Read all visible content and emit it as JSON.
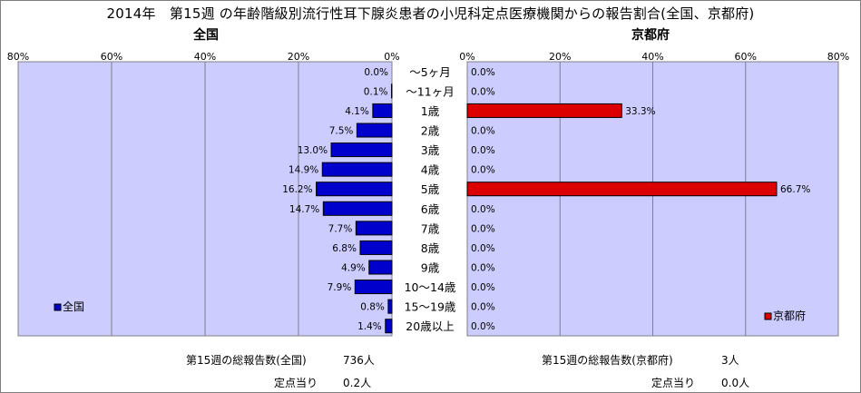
{
  "title": "2014年　第15週 の年齢階級別流行性耳下腺炎患者の小児科定点医療機関からの報告割合(全国、京都府)",
  "categories": [
    "～5ヶ月",
    "～11ヶ月",
    "1歳",
    "2歳",
    "3歳",
    "4歳",
    "5歳",
    "6歳",
    "7歳",
    "8歳",
    "9歳",
    "10～14歳",
    "15～19歳",
    "20歳以上"
  ],
  "colors": {
    "national": "#0000cc",
    "kyoto": "#dd0000",
    "plot_bg": "#ccccff"
  },
  "chart_data": [
    {
      "type": "bar",
      "orientation": "horizontal",
      "direction": "right-to-left",
      "title": "全国",
      "categories": [
        "～5ヶ月",
        "～11ヶ月",
        "1歳",
        "2歳",
        "3歳",
        "4歳",
        "5歳",
        "6歳",
        "7歳",
        "8歳",
        "9歳",
        "10～14歳",
        "15～19歳",
        "20歳以上"
      ],
      "series": [
        {
          "name": "全国",
          "values": [
            0.0,
            0.1,
            4.1,
            7.5,
            13.0,
            14.9,
            16.2,
            14.7,
            7.7,
            6.8,
            4.9,
            7.9,
            0.8,
            1.4
          ]
        }
      ],
      "labels": [
        "0.0%",
        "0.1%",
        "4.1%",
        "7.5%",
        "13.0%",
        "14.9%",
        "16.2%",
        "14.7%",
        "7.7%",
        "6.8%",
        "4.9%",
        "7.9%",
        "0.8%",
        "1.4%"
      ],
      "xlim": [
        0,
        80
      ],
      "ticks": [
        "80%",
        "60%",
        "40%",
        "20%",
        "0%"
      ],
      "tick_values": [
        80,
        60,
        40,
        20,
        0
      ],
      "legend": "bottom-left",
      "grid": true
    },
    {
      "type": "bar",
      "orientation": "horizontal",
      "direction": "left-to-right",
      "title": "京都府",
      "categories": [
        "～5ヶ月",
        "～11ヶ月",
        "1歳",
        "2歳",
        "3歳",
        "4歳",
        "5歳",
        "6歳",
        "7歳",
        "8歳",
        "9歳",
        "10～14歳",
        "15～19歳",
        "20歳以上"
      ],
      "series": [
        {
          "name": "京都府",
          "values": [
            0.0,
            0.0,
            33.3,
            0.0,
            0.0,
            0.0,
            66.7,
            0.0,
            0.0,
            0.0,
            0.0,
            0.0,
            0.0,
            0.0
          ]
        }
      ],
      "labels": [
        "0.0%",
        "0.0%",
        "33.3%",
        "0.0%",
        "0.0%",
        "0.0%",
        "66.7%",
        "0.0%",
        "0.0%",
        "0.0%",
        "0.0%",
        "0.0%",
        "0.0%",
        "0.0%"
      ],
      "xlim": [
        0,
        80
      ],
      "ticks": [
        "0%",
        "20%",
        "40%",
        "60%",
        "80%"
      ],
      "tick_values": [
        0,
        20,
        40,
        60,
        80
      ],
      "legend": "bottom-right",
      "grid": true
    }
  ],
  "footer": {
    "national_total_label": "第15週の総報告数(全国)",
    "national_total_value": "736人",
    "national_per_label": "定点当り",
    "national_per_value": "0.2人",
    "kyoto_total_label": "第15週の総報告数(京都府)",
    "kyoto_total_value": "3人",
    "kyoto_per_label": "定点当り",
    "kyoto_per_value": "0.0人"
  }
}
